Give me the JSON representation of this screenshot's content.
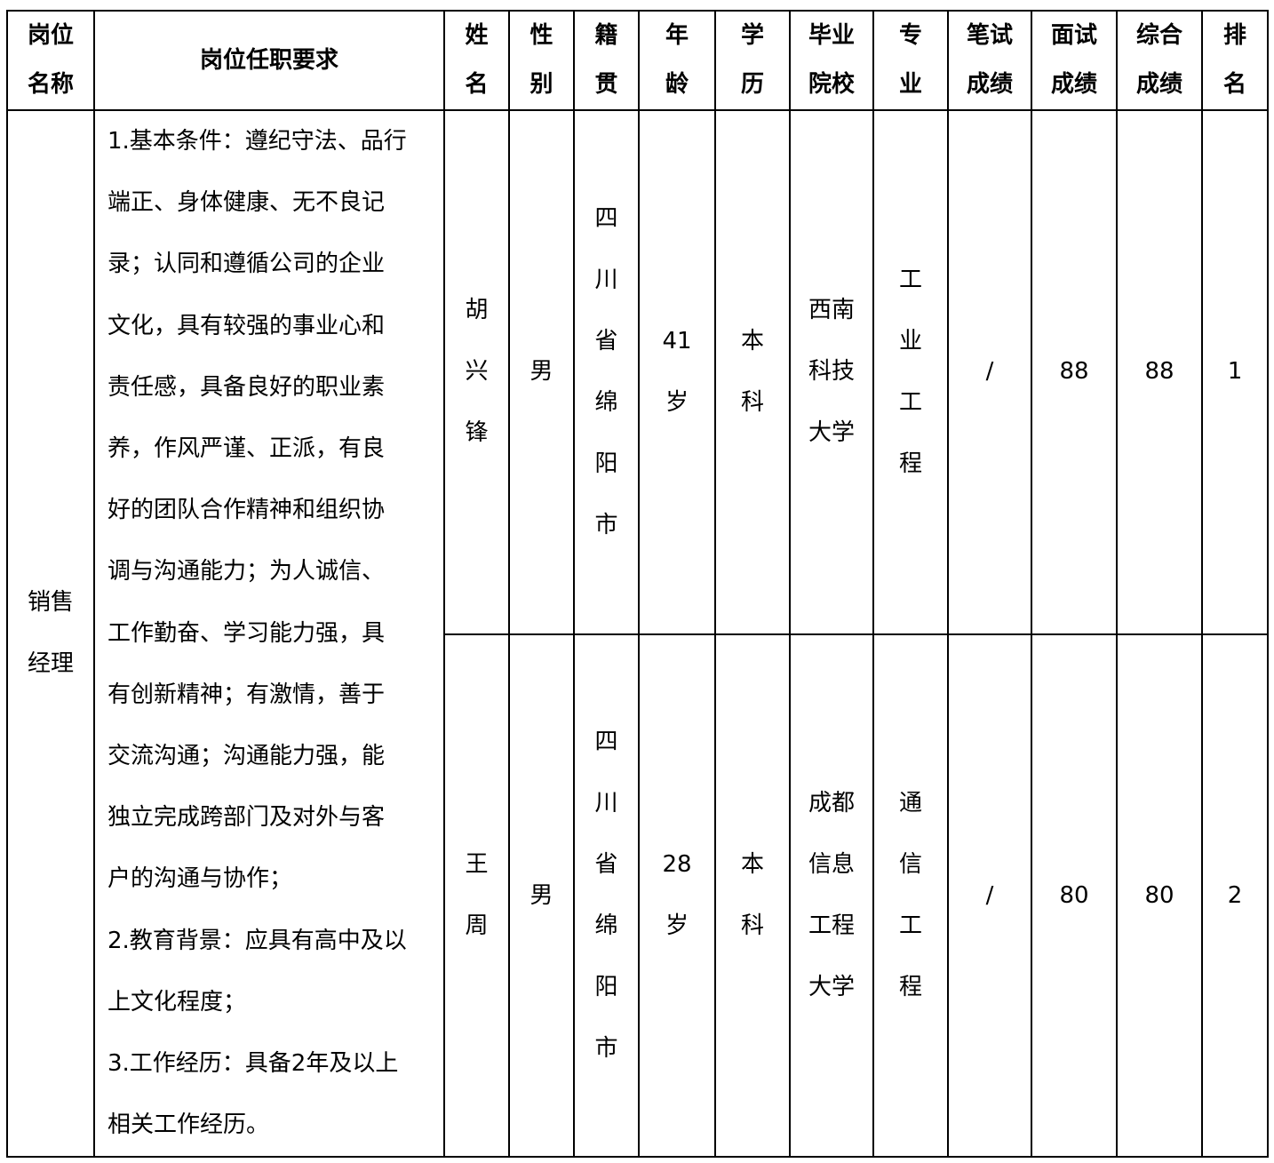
{
  "headers": [
    [
      "岗位",
      "名称"
    ],
    [
      "岗位任职要求"
    ],
    [
      "姓",
      "名"
    ],
    [
      "性",
      "别"
    ],
    [
      "籍",
      "贯"
    ],
    [
      "年",
      "龄"
    ],
    [
      "学",
      "历"
    ],
    [
      "毕业",
      "院校"
    ],
    [
      "专",
      "业"
    ],
    [
      "笔试",
      "成绩"
    ],
    [
      "面试",
      "成绩"
    ],
    [
      "综合",
      "成绩"
    ],
    [
      "排",
      "名"
    ]
  ],
  "position": [
    "销售",
    "经理"
  ],
  "requirements": [
    "1.基本条件：遵纪守法、品行",
    "端正、身体健康、无不良记",
    "录；认同和遵循公司的企业",
    "文化，具有较强的事业心和",
    "责任感，具备良好的职业素",
    "养，作风严谨、正派，有良",
    "好的团队合作精神和组织协",
    "调与沟通能力；为人诚信、",
    "工作勤奋、学习能力强，具",
    "有创新精神；有激情，善于",
    "交流沟通；沟通能力强，能",
    "独立完成跨部门及对外与客",
    "户的沟通与协作；",
    "2.教育背景：应具有高中及以",
    "上文化程度；",
    "3.工作经历：具备2年及以上",
    "相关工作经历。"
  ],
  "rows": [
    {
      "name": [
        "胡",
        "兴",
        "锋"
      ],
      "gender": [
        "男"
      ],
      "origin": [
        "四",
        "川",
        "省",
        "绵",
        "阳",
        "市"
      ],
      "age": [
        "41",
        "岁"
      ],
      "education": [
        "本",
        "科"
      ],
      "school": [
        "西南",
        "科技",
        "大学"
      ],
      "major": [
        "工",
        "业",
        "工",
        "程"
      ],
      "written": [
        "/"
      ],
      "interview": [
        "88"
      ],
      "total": [
        "88"
      ],
      "rank": [
        "1"
      ]
    },
    {
      "name": [
        "王",
        "周"
      ],
      "gender": [
        "男"
      ],
      "origin": [
        "四",
        "川",
        "省",
        "绵",
        "阳",
        "市"
      ],
      "age": [
        "28",
        "岁"
      ],
      "education": [
        "本",
        "科"
      ],
      "school": [
        "成都",
        "信息",
        "工程",
        "大学"
      ],
      "major": [
        "通",
        "信",
        "工",
        "程"
      ],
      "written": [
        "/"
      ],
      "interview": [
        "80"
      ],
      "total": [
        "80"
      ],
      "rank": [
        "2"
      ]
    }
  ]
}
